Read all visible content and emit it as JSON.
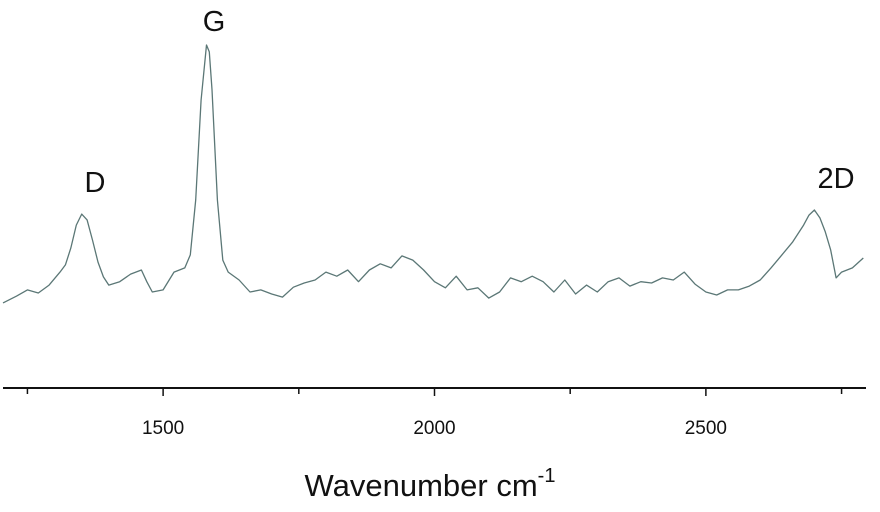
{
  "chart_data": {
    "type": "line",
    "x_label": "Wavenumber cm",
    "x_label_superscript": "-1",
    "annotations": [
      "D",
      "G",
      "2D"
    ],
    "xlim": [
      1205,
      2795
    ],
    "ylim": [
      0,
      100
    ],
    "xticks": [
      1500,
      2000,
      2500
    ],
    "xminorticks": [
      1250,
      1750,
      2250,
      2750
    ],
    "grid": false,
    "series": [
      {
        "color": "#5b7776",
        "x": [
          1205,
          1230,
          1250,
          1270,
          1290,
          1310,
          1320,
          1330,
          1340,
          1350,
          1360,
          1370,
          1380,
          1390,
          1400,
          1420,
          1440,
          1460,
          1470,
          1480,
          1500,
          1520,
          1540,
          1550,
          1560,
          1570,
          1580,
          1585,
          1590,
          1600,
          1610,
          1620,
          1640,
          1660,
          1680,
          1700,
          1720,
          1740,
          1760,
          1780,
          1800,
          1820,
          1840,
          1860,
          1880,
          1900,
          1920,
          1940,
          1960,
          1980,
          2000,
          2020,
          2040,
          2060,
          2080,
          2100,
          2120,
          2140,
          2160,
          2180,
          2200,
          2220,
          2240,
          2260,
          2280,
          2300,
          2320,
          2340,
          2360,
          2380,
          2400,
          2420,
          2440,
          2460,
          2480,
          2500,
          2520,
          2540,
          2560,
          2580,
          2600,
          2620,
          2640,
          2660,
          2680,
          2690,
          2700,
          2710,
          2720,
          2730,
          2740,
          2750,
          2770,
          2790
        ],
        "values": [
          24.8,
          26.8,
          28.6,
          27.7,
          30,
          33.8,
          35.9,
          40.8,
          47.5,
          50.7,
          49,
          43,
          36.7,
          32.4,
          30,
          31,
          33.2,
          34.4,
          31,
          28,
          28.6,
          33.8,
          35,
          38.8,
          54.8,
          84,
          100,
          98,
          87,
          54.8,
          37.3,
          33.8,
          31.5,
          28,
          28.6,
          27.4,
          26.5,
          29.4,
          30.6,
          31.5,
          33.8,
          32.6,
          34.4,
          31,
          34.4,
          36.2,
          35,
          38.5,
          37.3,
          34.4,
          31,
          29.2,
          32.6,
          28.6,
          29.2,
          26.2,
          28,
          32.1,
          31,
          32.6,
          31,
          28,
          31.5,
          27.4,
          30,
          28,
          31,
          32.1,
          29.7,
          31,
          30.6,
          32.1,
          31.5,
          33.8,
          30.3,
          28,
          27.1,
          28.6,
          28.6,
          29.7,
          31.5,
          35,
          38.8,
          42.6,
          47.5,
          50.4,
          51.9,
          49.6,
          45.5,
          40.2,
          32.1,
          33.8,
          35,
          37.9
        ]
      }
    ]
  }
}
